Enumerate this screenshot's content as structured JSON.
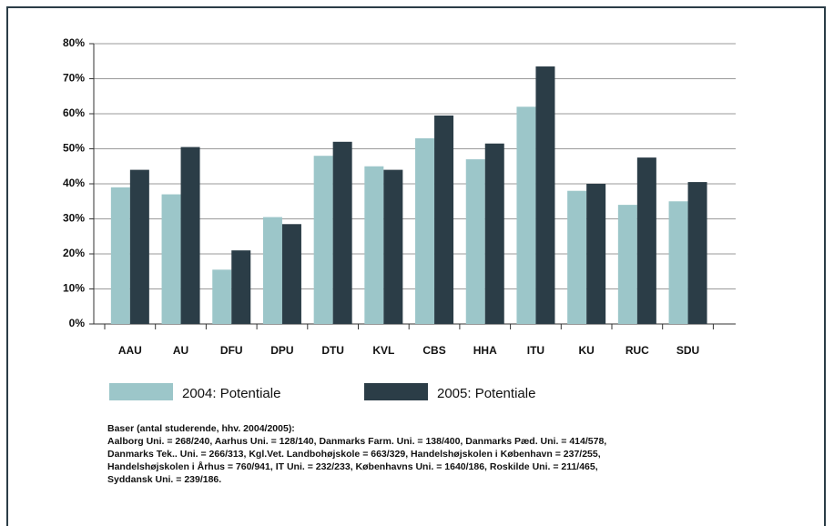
{
  "chart_data": {
    "type": "bar",
    "categories": [
      "AAU",
      "AU",
      "DFU",
      "DPU",
      "DTU",
      "KVL",
      "CBS",
      "HHA",
      "ITU",
      "KU",
      "RUC",
      "SDU"
    ],
    "series": [
      {
        "name": "2004: Potentiale",
        "color": "#9cc6c9",
        "values": [
          39,
          37,
          15.5,
          30.5,
          48,
          45,
          53,
          47,
          62,
          38,
          34,
          35
        ]
      },
      {
        "name": "2005: Potentiale",
        "color": "#2b3d47",
        "values": [
          44,
          50.5,
          21,
          28.5,
          52,
          44,
          59.5,
          51.5,
          73.5,
          40,
          47.5,
          40.5
        ]
      }
    ],
    "ylim": [
      0,
      80
    ],
    "yticks": [
      {
        "value": 0,
        "label": "0%"
      },
      {
        "value": 10,
        "label": "10%"
      },
      {
        "value": 20,
        "label": "20%"
      },
      {
        "value": 30,
        "label": "30%"
      },
      {
        "value": 40,
        "label": "40%"
      },
      {
        "value": 50,
        "label": "50%"
      },
      {
        "value": 60,
        "label": "60%"
      },
      {
        "value": 70,
        "label": "70%"
      },
      {
        "value": 80,
        "label": "80%"
      }
    ],
    "grid": true,
    "notes": [
      "Baser (antal studerende, hhv. 2004/2005):",
      "Aalborg Uni. = 268/240, Aarhus Uni. = 128/140, Danmarks Farm. Uni. = 138/400, Danmarks Pæd. Uni. = 414/578,",
      "Danmarks Tek.. Uni. = 266/313, Kgl.Vet. Landbohøjskole = 663/329, Handelshøjskolen i København = 237/255,",
      "Handelshøjskolen i Århus = 760/941, IT Uni. = 232/233, Københavns Uni. = 1640/186, Roskilde Uni. = 211/465,",
      "Syddansk Uni. = 239/186."
    ]
  }
}
